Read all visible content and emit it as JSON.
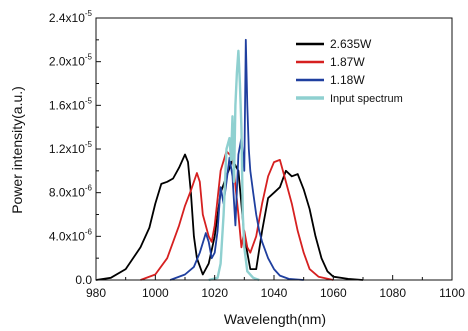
{
  "chart_data": {
    "type": "line",
    "title": "",
    "xlabel": "Wavelength(nm)",
    "ylabel": "Power intensity(a.u.)",
    "xlim": [
      980,
      1100
    ],
    "ylim": [
      0,
      2.4e-05
    ],
    "x_ticks": [
      980,
      1000,
      1020,
      1040,
      1060,
      1080,
      1100
    ],
    "x_tick_labels": [
      "980",
      "1000",
      "1020",
      "1040",
      "1060",
      "1080",
      "1100"
    ],
    "y_ticks": [
      0,
      4e-06,
      8e-06,
      1.2e-05,
      1.6e-05,
      2e-05,
      2.4e-05
    ],
    "y_tick_labels": [
      {
        "mantissa": "0.0",
        "exp": ""
      },
      {
        "mantissa": "4.0x10",
        "exp": "-6"
      },
      {
        "mantissa": "8.0x10",
        "exp": "-6"
      },
      {
        "mantissa": "1.2x10",
        "exp": "-5"
      },
      {
        "mantissa": "1.6x10",
        "exp": "-5"
      },
      {
        "mantissa": "2.0x10",
        "exp": "-5"
      },
      {
        "mantissa": "2.4x10",
        "exp": "-5"
      }
    ],
    "grid": false,
    "legend_position": "top-right",
    "series": [
      {
        "name": "2.635W",
        "color": "#000000",
        "x": [
          980,
          985,
          990,
          995,
          998,
          1000,
          1002,
          1004,
          1006,
          1008,
          1010,
          1011,
          1012,
          1013,
          1014,
          1016,
          1018,
          1020,
          1022,
          1024,
          1026,
          1028,
          1030,
          1032,
          1034,
          1036,
          1038,
          1040,
          1042,
          1044,
          1046,
          1048,
          1050,
          1052,
          1054,
          1056,
          1058,
          1060,
          1065,
          1070
        ],
        "values": [
          0,
          2e-07,
          1e-06,
          3e-06,
          4.8e-06,
          7e-06,
          8.8e-06,
          9e-06,
          9.3e-06,
          1.03e-05,
          1.15e-05,
          1.08e-05,
          8e-06,
          4e-06,
          2e-06,
          5e-07,
          1.5e-06,
          4e-06,
          8e-06,
          9.5e-06,
          1.1e-05,
          1e-05,
          4e-06,
          1e-06,
          1e-06,
          4.5e-06,
          7.5e-06,
          8e-06,
          8.5e-06,
          1e-05,
          9.5e-06,
          9.7e-06,
          8.3e-06,
          6.5e-06,
          4e-06,
          2e-06,
          8e-07,
          3e-07,
          1e-07,
          0
        ]
      },
      {
        "name": "1.87W",
        "color": "#d62020",
        "x": [
          995,
          1000,
          1004,
          1008,
          1010,
          1012,
          1014,
          1015,
          1016,
          1018,
          1019,
          1020,
          1022,
          1024,
          1026,
          1028,
          1029,
          1030,
          1031,
          1032,
          1034,
          1036,
          1038,
          1040,
          1042,
          1044,
          1046,
          1048,
          1050,
          1052,
          1055,
          1060
        ],
        "values": [
          0,
          5e-07,
          2e-06,
          5e-06,
          6.8e-06,
          8.2e-06,
          9.8e-06,
          9e-06,
          6e-06,
          4e-06,
          3.5e-06,
          5e-06,
          1e-05,
          1.18e-05,
          1.12e-05,
          6e-06,
          3e-06,
          4.5e-06,
          3e-06,
          2.5e-06,
          4e-06,
          7e-06,
          9.5e-06,
          1.08e-05,
          1.1e-05,
          9e-06,
          7e-06,
          4.5e-06,
          2.5e-06,
          1e-06,
          3e-07,
          0
        ]
      },
      {
        "name": "1.18W",
        "color": "#1f3f9f",
        "x": [
          1005,
          1010,
          1013,
          1015,
          1017,
          1018,
          1019,
          1020,
          1021,
          1022,
          1023,
          1024,
          1025,
          1026,
          1027,
          1028,
          1029,
          1030,
          1030.5,
          1031,
          1031.5,
          1032,
          1033,
          1034,
          1035,
          1036,
          1038,
          1040,
          1042,
          1045,
          1050
        ],
        "values": [
          0,
          5e-07,
          1.2e-06,
          2.5e-06,
          4.3e-06,
          3.5e-06,
          2e-06,
          2.5e-06,
          4.5e-06,
          8.5e-06,
          7e-06,
          9e-06,
          1.12e-05,
          9.5e-06,
          5e-06,
          1.15e-05,
          1.3e-05,
          1e-05,
          2.2e-05,
          1.6e-05,
          1.2e-05,
          1e-05,
          8e-06,
          6e-06,
          4.5e-06,
          3.5e-06,
          2e-06,
          1e-06,
          4e-07,
          1e-07,
          0
        ]
      },
      {
        "name": "Input spectrum",
        "color": "#8fd0d0",
        "x": [
          1018,
          1021,
          1022,
          1023,
          1024,
          1025,
          1025.5,
          1026,
          1026.5,
          1027,
          1027.5,
          1028,
          1028.5,
          1029,
          1029.5,
          1030,
          1031,
          1033,
          1035
        ],
        "values": [
          0,
          2e-07,
          1.5e-06,
          6e-06,
          1.2e-05,
          1.3e-05,
          1.1e-05,
          1.5e-05,
          9e-06,
          1.6e-05,
          1.9e-05,
          2.1e-05,
          1.8e-05,
          1.4e-05,
          6e-06,
          3e-06,
          8e-07,
          2e-07,
          0
        ]
      }
    ]
  }
}
